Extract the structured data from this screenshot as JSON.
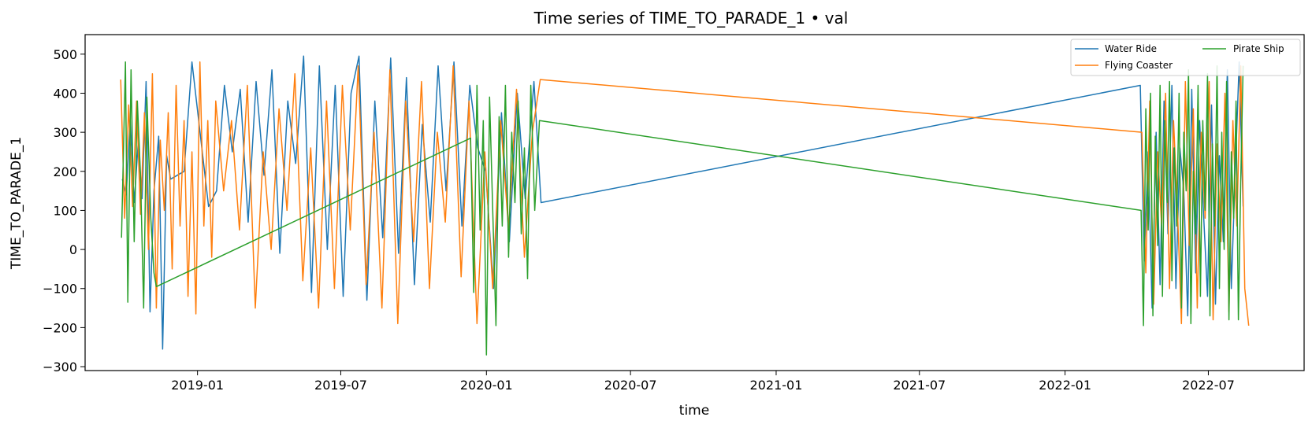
{
  "chart_data": {
    "type": "line",
    "title": "Time series of TIME_TO_PARADE_1 • val",
    "xlabel": "time",
    "ylabel": "TIME_TO_PARADE_1",
    "ylim": [
      -310,
      550
    ],
    "xlim": [
      "2018-08-12",
      "2022-10-30"
    ],
    "x_ticks": [
      "2019-01",
      "2019-07",
      "2020-01",
      "2020-07",
      "2021-01",
      "2021-07",
      "2022-01",
      "2022-07"
    ],
    "y_ticks": [
      -300,
      -200,
      -100,
      0,
      100,
      200,
      300,
      400,
      500
    ],
    "grid": false,
    "legend_position": "top-right",
    "legend_columns": 2,
    "series": [
      {
        "name": "Water Ride",
        "color": "#1f77b4",
        "points": [
          [
            "2018-09-28",
            180
          ],
          [
            "2018-10-03",
            140
          ],
          [
            "2018-10-08",
            330
          ],
          [
            "2018-10-13",
            120
          ],
          [
            "2018-10-18",
            270
          ],
          [
            "2018-10-23",
            130
          ],
          [
            "2018-10-28",
            430
          ],
          [
            "2018-11-02",
            -160
          ],
          [
            "2018-11-07",
            150
          ],
          [
            "2018-11-13",
            290
          ],
          [
            "2018-11-18",
            -255
          ],
          [
            "2018-11-23",
            240
          ],
          [
            "2018-11-28",
            180
          ],
          [
            "2018-12-15",
            200
          ],
          [
            "2018-12-25",
            480
          ],
          [
            "2019-01-15",
            110
          ],
          [
            "2019-01-25",
            150
          ],
          [
            "2019-02-04",
            420
          ],
          [
            "2019-02-14",
            250
          ],
          [
            "2019-02-24",
            410
          ],
          [
            "2019-03-06",
            70
          ],
          [
            "2019-03-16",
            430
          ],
          [
            "2019-03-26",
            190
          ],
          [
            "2019-04-05",
            460
          ],
          [
            "2019-04-15",
            -10
          ],
          [
            "2019-04-25",
            380
          ],
          [
            "2019-05-05",
            220
          ],
          [
            "2019-05-15",
            495
          ],
          [
            "2019-05-25",
            -110
          ],
          [
            "2019-06-04",
            470
          ],
          [
            "2019-06-14",
            0
          ],
          [
            "2019-06-24",
            420
          ],
          [
            "2019-07-04",
            -120
          ],
          [
            "2019-07-14",
            400
          ],
          [
            "2019-07-24",
            495
          ],
          [
            "2019-08-03",
            -130
          ],
          [
            "2019-08-13",
            380
          ],
          [
            "2019-08-23",
            30
          ],
          [
            "2019-09-02",
            490
          ],
          [
            "2019-09-12",
            -10
          ],
          [
            "2019-09-22",
            440
          ],
          [
            "2019-10-02",
            -90
          ],
          [
            "2019-10-12",
            320
          ],
          [
            "2019-10-22",
            70
          ],
          [
            "2019-11-01",
            470
          ],
          [
            "2019-11-11",
            150
          ],
          [
            "2019-11-21",
            480
          ],
          [
            "2019-12-01",
            60
          ],
          [
            "2019-12-11",
            420
          ],
          [
            "2019-12-21",
            260
          ],
          [
            "2019-12-31",
            200
          ],
          [
            "2020-01-10",
            -100
          ],
          [
            "2020-01-20",
            350
          ],
          [
            "2020-01-30",
            20
          ],
          [
            "2020-02-09",
            400
          ],
          [
            "2020-02-19",
            130
          ],
          [
            "2020-03-01",
            430
          ],
          [
            "2020-03-10",
            120
          ],
          [
            "2022-04-06",
            420
          ],
          [
            "2022-04-11",
            -30
          ],
          [
            "2022-04-16",
            250
          ],
          [
            "2022-04-21",
            -150
          ],
          [
            "2022-04-26",
            300
          ],
          [
            "2022-05-01",
            -90
          ],
          [
            "2022-05-06",
            380
          ],
          [
            "2022-05-11",
            40
          ],
          [
            "2022-05-16",
            420
          ],
          [
            "2022-05-21",
            -100
          ],
          [
            "2022-05-26",
            260
          ],
          [
            "2022-05-31",
            150
          ],
          [
            "2022-06-05",
            -170
          ],
          [
            "2022-06-10",
            410
          ],
          [
            "2022-06-15",
            -60
          ],
          [
            "2022-06-20",
            330
          ],
          [
            "2022-06-25",
            90
          ],
          [
            "2022-06-30",
            -120
          ],
          [
            "2022-07-05",
            370
          ],
          [
            "2022-07-10",
            -140
          ],
          [
            "2022-07-15",
            240
          ],
          [
            "2022-07-20",
            20
          ],
          [
            "2022-07-25",
            460
          ],
          [
            "2022-07-30",
            -100
          ],
          [
            "2022-08-04",
            200
          ],
          [
            "2022-08-09",
            480
          ],
          [
            "2022-08-14",
            110
          ]
        ]
      },
      {
        "name": "Flying Coaster",
        "color": "#ff7f0e",
        "points": [
          [
            "2018-09-26",
            435
          ],
          [
            "2018-10-01",
            80
          ],
          [
            "2018-10-06",
            370
          ],
          [
            "2018-10-11",
            110
          ],
          [
            "2018-10-16",
            380
          ],
          [
            "2018-10-21",
            90
          ],
          [
            "2018-10-26",
            350
          ],
          [
            "2018-10-31",
            0
          ],
          [
            "2018-11-05",
            450
          ],
          [
            "2018-11-10",
            -150
          ],
          [
            "2018-11-15",
            280
          ],
          [
            "2018-11-20",
            100
          ],
          [
            "2018-11-25",
            350
          ],
          [
            "2018-11-30",
            -50
          ],
          [
            "2018-12-05",
            420
          ],
          [
            "2018-12-10",
            60
          ],
          [
            "2018-12-15",
            330
          ],
          [
            "2018-12-20",
            -120
          ],
          [
            "2018-12-25",
            250
          ],
          [
            "2018-12-30",
            -165
          ],
          [
            "2019-01-04",
            480
          ],
          [
            "2019-01-09",
            60
          ],
          [
            "2019-01-14",
            330
          ],
          [
            "2019-01-19",
            -20
          ],
          [
            "2019-01-24",
            380
          ],
          [
            "2019-02-03",
            150
          ],
          [
            "2019-02-13",
            330
          ],
          [
            "2019-02-23",
            50
          ],
          [
            "2019-03-05",
            420
          ],
          [
            "2019-03-15",
            -150
          ],
          [
            "2019-03-25",
            250
          ],
          [
            "2019-04-04",
            0
          ],
          [
            "2019-04-14",
            360
          ],
          [
            "2019-04-24",
            100
          ],
          [
            "2019-05-04",
            450
          ],
          [
            "2019-05-14",
            -80
          ],
          [
            "2019-05-24",
            260
          ],
          [
            "2019-06-03",
            -150
          ],
          [
            "2019-06-13",
            380
          ],
          [
            "2019-06-23",
            -100
          ],
          [
            "2019-07-03",
            420
          ],
          [
            "2019-07-13",
            50
          ],
          [
            "2019-07-23",
            470
          ],
          [
            "2019-08-02",
            -90
          ],
          [
            "2019-08-12",
            300
          ],
          [
            "2019-08-22",
            -150
          ],
          [
            "2019-09-01",
            460
          ],
          [
            "2019-09-11",
            -190
          ],
          [
            "2019-09-21",
            380
          ],
          [
            "2019-10-01",
            20
          ],
          [
            "2019-10-11",
            430
          ],
          [
            "2019-10-21",
            -100
          ],
          [
            "2019-10-31",
            300
          ],
          [
            "2019-11-10",
            70
          ],
          [
            "2019-11-20",
            470
          ],
          [
            "2019-11-30",
            -70
          ],
          [
            "2019-12-10",
            380
          ],
          [
            "2019-12-20",
            -190
          ],
          [
            "2019-12-30",
            250
          ],
          [
            "2020-01-09",
            -100
          ],
          [
            "2020-01-19",
            330
          ],
          [
            "2020-01-29",
            50
          ],
          [
            "2020-02-08",
            410
          ],
          [
            "2020-02-18",
            -20
          ],
          [
            "2020-02-28",
            300
          ],
          [
            "2020-03-09",
            435
          ],
          [
            "2022-04-08",
            300
          ],
          [
            "2022-04-13",
            -60
          ],
          [
            "2022-04-18",
            380
          ],
          [
            "2022-04-23",
            -140
          ],
          [
            "2022-04-28",
            250
          ],
          [
            "2022-05-03",
            60
          ],
          [
            "2022-05-08",
            400
          ],
          [
            "2022-05-13",
            -100
          ],
          [
            "2022-05-18",
            330
          ],
          [
            "2022-05-23",
            100
          ],
          [
            "2022-05-28",
            -190
          ],
          [
            "2022-06-02",
            430
          ],
          [
            "2022-06-07",
            10
          ],
          [
            "2022-06-12",
            360
          ],
          [
            "2022-06-17",
            -150
          ],
          [
            "2022-06-22",
            300
          ],
          [
            "2022-06-27",
            80
          ],
          [
            "2022-07-02",
            430
          ],
          [
            "2022-07-07",
            -180
          ],
          [
            "2022-07-12",
            270
          ],
          [
            "2022-07-17",
            20
          ],
          [
            "2022-07-22",
            400
          ],
          [
            "2022-07-27",
            -160
          ],
          [
            "2022-08-01",
            330
          ],
          [
            "2022-08-06",
            60
          ],
          [
            "2022-08-11",
            470
          ],
          [
            "2022-08-16",
            -100
          ],
          [
            "2022-08-21",
            -195
          ]
        ]
      },
      {
        "name": "Pirate Ship",
        "color": "#2ca02c",
        "points": [
          [
            "2018-09-27",
            30
          ],
          [
            "2018-10-02",
            480
          ],
          [
            "2018-10-05",
            -135
          ],
          [
            "2018-10-09",
            460
          ],
          [
            "2018-10-13",
            20
          ],
          [
            "2018-10-17",
            380
          ],
          [
            "2018-10-21",
            190
          ],
          [
            "2018-10-25",
            -150
          ],
          [
            "2018-10-29",
            390
          ],
          [
            "2018-11-03",
            80
          ],
          [
            "2018-11-07",
            -60
          ],
          [
            "2018-11-10",
            -95
          ],
          [
            "2019-12-12",
            285
          ],
          [
            "2019-12-16",
            -110
          ],
          [
            "2019-12-20",
            420
          ],
          [
            "2019-12-24",
            50
          ],
          [
            "2019-12-28",
            330
          ],
          [
            "2020-01-01",
            -270
          ],
          [
            "2020-01-05",
            390
          ],
          [
            "2020-01-09",
            100
          ],
          [
            "2020-01-13",
            -195
          ],
          [
            "2020-01-17",
            340
          ],
          [
            "2020-01-21",
            60
          ],
          [
            "2020-01-25",
            420
          ],
          [
            "2020-01-29",
            -20
          ],
          [
            "2020-02-02",
            300
          ],
          [
            "2020-02-06",
            120
          ],
          [
            "2020-02-10",
            380
          ],
          [
            "2020-02-14",
            40
          ],
          [
            "2020-02-18",
            260
          ],
          [
            "2020-02-22",
            -75
          ],
          [
            "2020-02-26",
            420
          ],
          [
            "2020-03-02",
            100
          ],
          [
            "2020-03-08",
            330
          ],
          [
            "2022-04-07",
            100
          ],
          [
            "2022-04-10",
            -195
          ],
          [
            "2022-04-13",
            360
          ],
          [
            "2022-04-16",
            50
          ],
          [
            "2022-04-19",
            400
          ],
          [
            "2022-04-22",
            -170
          ],
          [
            "2022-04-25",
            290
          ],
          [
            "2022-04-28",
            10
          ],
          [
            "2022-05-01",
            420
          ],
          [
            "2022-05-04",
            -120
          ],
          [
            "2022-05-07",
            330
          ],
          [
            "2022-05-10",
            120
          ],
          [
            "2022-05-13",
            430
          ],
          [
            "2022-05-16",
            -80
          ],
          [
            "2022-05-19",
            260
          ],
          [
            "2022-05-22",
            60
          ],
          [
            "2022-05-25",
            400
          ],
          [
            "2022-05-28",
            -150
          ],
          [
            "2022-05-31",
            300
          ],
          [
            "2022-06-03",
            150
          ],
          [
            "2022-06-06",
            460
          ],
          [
            "2022-06-09",
            -190
          ],
          [
            "2022-06-12",
            200
          ],
          [
            "2022-06-15",
            40
          ],
          [
            "2022-06-18",
            420
          ],
          [
            "2022-06-21",
            -120
          ],
          [
            "2022-06-24",
            330
          ],
          [
            "2022-06-27",
            100
          ],
          [
            "2022-06-30",
            450
          ],
          [
            "2022-07-03",
            -170
          ],
          [
            "2022-07-06",
            270
          ],
          [
            "2022-07-09",
            60
          ],
          [
            "2022-07-12",
            470
          ],
          [
            "2022-07-15",
            -100
          ],
          [
            "2022-07-18",
            300
          ],
          [
            "2022-07-21",
            0
          ],
          [
            "2022-07-24",
            430
          ],
          [
            "2022-07-27",
            -180
          ],
          [
            "2022-07-30",
            250
          ],
          [
            "2022-08-02",
            80
          ],
          [
            "2022-08-05",
            380
          ],
          [
            "2022-08-08",
            -180
          ],
          [
            "2022-08-11",
            180
          ],
          [
            "2022-08-14",
            470
          ]
        ]
      }
    ]
  }
}
